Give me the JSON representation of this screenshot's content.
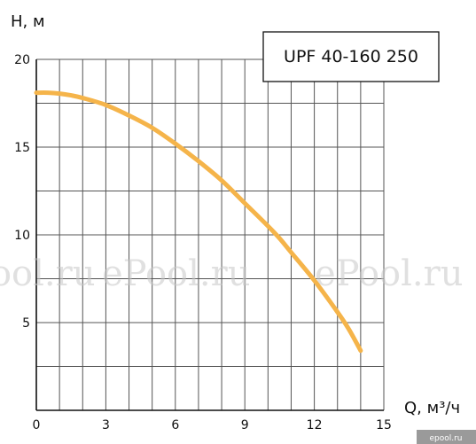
{
  "chart_data": {
    "type": "line",
    "title": "UPF 40-160 250",
    "xlabel": "Q, м³/ч",
    "ylabel": "H, м",
    "xlim": [
      0,
      15
    ],
    "ylim": [
      0,
      20
    ],
    "x_ticks": [
      0,
      3,
      6,
      9,
      12,
      15
    ],
    "y_ticks": [
      5,
      10,
      15,
      20
    ],
    "grid": true,
    "series": [
      {
        "color": "#f5b44a",
        "x": [
          0,
          0.5,
          1,
          1.5,
          2,
          3,
          4,
          5,
          6,
          7,
          8,
          9,
          10,
          10.5,
          11,
          12,
          13,
          13.5,
          14
        ],
        "y": [
          18.1,
          18.1,
          18.05,
          17.95,
          17.8,
          17.4,
          16.8,
          16.1,
          15.2,
          14.2,
          13.1,
          11.8,
          10.5,
          9.8,
          9.0,
          7.4,
          5.6,
          4.6,
          3.4
        ]
      }
    ]
  },
  "watermarks": [
    "ePool.ru",
    "ePool.ru",
    "ePool.ru"
  ],
  "corner_badge": "epool.ru"
}
